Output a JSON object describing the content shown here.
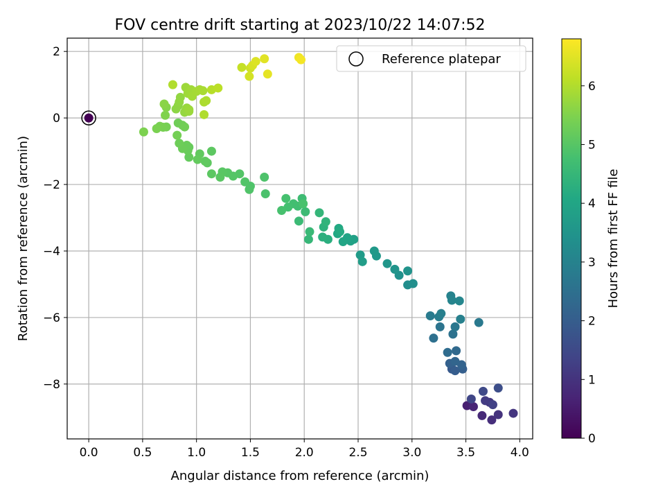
{
  "chart_data": {
    "type": "scatter",
    "title": "FOV centre drift starting at 2023/10/22 14:07:52",
    "xlabel": "Angular distance from reference (arcmin)",
    "ylabel": "Rotation from reference (arcmin)",
    "xlim": [
      -0.2,
      4.12
    ],
    "ylim": [
      -9.65,
      2.4
    ],
    "xticks": [
      0.0,
      0.5,
      1.0,
      1.5,
      2.0,
      2.5,
      3.0,
      3.5,
      4.0
    ],
    "xtick_labels": [
      "0.0",
      "0.5",
      "1.0",
      "1.5",
      "2.0",
      "2.5",
      "3.0",
      "3.5",
      "4.0"
    ],
    "yticks": [
      2,
      0,
      -2,
      -4,
      -6,
      -8
    ],
    "ytick_labels": [
      "2",
      "0",
      "−2",
      "−4",
      "−6",
      "−8"
    ],
    "grid": true,
    "legend": {
      "placement": "top-right",
      "entries": [
        "Reference platepar"
      ]
    },
    "colorbar": {
      "label": "Hours from first FF file",
      "colormap": "viridis",
      "range": [
        0,
        6.8
      ],
      "ticks": [
        0,
        1,
        2,
        3,
        4,
        5,
        6
      ],
      "tick_labels": [
        "0",
        "1",
        "2",
        "3",
        "4",
        "5",
        "6"
      ]
    },
    "reference_point": {
      "x": 0.0,
      "y": 0.0,
      "c": 0.0
    },
    "series": [
      {
        "points": [
          [
            3.51,
            -8.65,
            0.6
          ],
          [
            3.57,
            -8.68,
            0.7
          ],
          [
            3.65,
            -8.95,
            0.8
          ],
          [
            3.74,
            -9.08,
            0.9
          ],
          [
            3.8,
            -8.92,
            1.0
          ],
          [
            3.94,
            -8.88,
            1.05
          ],
          [
            3.72,
            -8.55,
            1.1
          ],
          [
            3.68,
            -8.5,
            1.2
          ],
          [
            3.75,
            -8.62,
            1.3
          ],
          [
            3.55,
            -8.45,
            1.4
          ],
          [
            3.66,
            -8.22,
            1.5
          ],
          [
            3.8,
            -8.12,
            1.6
          ],
          [
            3.37,
            -7.55,
            1.9
          ],
          [
            3.4,
            -7.6,
            2.0
          ],
          [
            3.47,
            -7.55,
            2.05
          ],
          [
            3.35,
            -7.38,
            2.1
          ],
          [
            3.46,
            -7.42,
            2.15
          ],
          [
            3.4,
            -7.32,
            2.2
          ],
          [
            3.41,
            -7.0,
            2.3
          ],
          [
            3.33,
            -7.05,
            2.4
          ],
          [
            3.2,
            -6.62,
            2.5
          ],
          [
            3.38,
            -6.5,
            2.55
          ],
          [
            3.26,
            -6.28,
            2.6
          ],
          [
            3.4,
            -6.28,
            2.7
          ],
          [
            3.62,
            -6.15,
            2.75
          ],
          [
            3.17,
            -5.95,
            2.8
          ],
          [
            3.25,
            -5.98,
            2.85
          ],
          [
            3.27,
            -5.88,
            2.9
          ],
          [
            3.45,
            -6.05,
            2.95
          ],
          [
            3.36,
            -5.35,
            3.0
          ],
          [
            3.37,
            -5.48,
            3.05
          ],
          [
            3.44,
            -5.5,
            3.1
          ],
          [
            2.96,
            -5.02,
            3.3
          ],
          [
            3.01,
            -4.98,
            3.35
          ],
          [
            2.88,
            -4.73,
            3.4
          ],
          [
            2.96,
            -4.6,
            3.45
          ],
          [
            2.84,
            -4.55,
            3.5
          ],
          [
            2.77,
            -4.38,
            3.55
          ],
          [
            2.67,
            -4.15,
            3.6
          ],
          [
            2.65,
            -4.0,
            3.65
          ],
          [
            2.52,
            -4.12,
            3.7
          ],
          [
            2.54,
            -4.32,
            3.75
          ],
          [
            2.46,
            -3.65,
            3.85
          ],
          [
            2.43,
            -3.7,
            3.9
          ],
          [
            2.4,
            -3.6,
            3.95
          ],
          [
            2.36,
            -3.72,
            4.0
          ],
          [
            2.31,
            -3.48,
            4.05
          ],
          [
            2.32,
            -3.32,
            4.1
          ],
          [
            2.33,
            -3.42,
            4.15
          ],
          [
            2.22,
            -3.65,
            4.25
          ],
          [
            2.17,
            -3.58,
            4.3
          ],
          [
            2.18,
            -3.28,
            4.35
          ],
          [
            2.2,
            -3.12,
            4.4
          ],
          [
            2.14,
            -2.85,
            4.45
          ],
          [
            2.04,
            -3.65,
            4.5
          ],
          [
            2.05,
            -3.42,
            4.55
          ],
          [
            1.95,
            -3.1,
            4.6
          ],
          [
            2.01,
            -2.82,
            4.62
          ],
          [
            1.98,
            -2.42,
            4.65
          ],
          [
            1.94,
            -2.65,
            4.7
          ],
          [
            1.9,
            -2.58,
            4.72
          ],
          [
            1.85,
            -2.68,
            4.75
          ],
          [
            1.83,
            -2.42,
            4.78
          ],
          [
            1.79,
            -2.78,
            4.8
          ],
          [
            1.99,
            -2.58,
            4.82
          ],
          [
            1.64,
            -2.28,
            4.85
          ],
          [
            1.63,
            -1.78,
            4.88
          ],
          [
            1.5,
            -2.05,
            4.9
          ],
          [
            1.49,
            -2.15,
            4.92
          ],
          [
            1.45,
            -1.92,
            4.94
          ],
          [
            1.4,
            -1.68,
            4.96
          ],
          [
            1.34,
            -1.75,
            4.98
          ],
          [
            1.29,
            -1.65,
            5.0
          ],
          [
            1.24,
            -1.62,
            5.02
          ],
          [
            1.22,
            -1.78,
            5.04
          ],
          [
            1.14,
            -1.68,
            5.06
          ],
          [
            1.14,
            -1.0,
            5.08
          ],
          [
            1.1,
            -1.35,
            5.1
          ],
          [
            1.08,
            -1.3,
            5.12
          ],
          [
            1.03,
            -1.08,
            5.14
          ],
          [
            1.01,
            -1.25,
            5.16
          ],
          [
            0.93,
            -1.18,
            5.18
          ],
          [
            0.93,
            -0.88,
            5.2
          ],
          [
            0.92,
            -0.98,
            5.22
          ],
          [
            0.91,
            -0.82,
            5.24
          ],
          [
            0.87,
            -0.92,
            5.26
          ],
          [
            0.84,
            -0.76,
            5.28
          ],
          [
            0.83,
            -0.15,
            5.3
          ],
          [
            0.87,
            -0.22,
            5.32
          ],
          [
            0.89,
            -0.27,
            5.34
          ],
          [
            0.82,
            -0.52,
            5.36
          ],
          [
            0.72,
            -0.27,
            5.38
          ],
          [
            0.69,
            -0.28,
            5.4
          ],
          [
            0.66,
            -0.25,
            5.42
          ],
          [
            0.63,
            -0.32,
            5.44
          ],
          [
            0.51,
            -0.42,
            5.46
          ],
          [
            0.71,
            0.08,
            5.5
          ],
          [
            0.72,
            0.32,
            5.55
          ],
          [
            0.7,
            0.42,
            5.6
          ],
          [
            0.81,
            0.27,
            5.62
          ],
          [
            0.83,
            0.37,
            5.64
          ],
          [
            0.84,
            0.48,
            5.66
          ],
          [
            0.85,
            0.62,
            5.68
          ],
          [
            0.89,
            0.17,
            5.7
          ],
          [
            0.9,
            0.22,
            5.72
          ],
          [
            0.91,
            0.3,
            5.74
          ],
          [
            0.93,
            0.2,
            5.76
          ],
          [
            0.93,
            0.25,
            5.78
          ],
          [
            0.9,
            0.92,
            5.8
          ],
          [
            0.92,
            0.74,
            5.82
          ],
          [
            0.95,
            0.85,
            5.84
          ],
          [
            0.96,
            0.65,
            5.86
          ],
          [
            1.0,
            0.8,
            5.88
          ],
          [
            1.03,
            0.85,
            5.9
          ],
          [
            1.06,
            0.82,
            5.92
          ],
          [
            1.07,
            0.48,
            5.94
          ],
          [
            1.09,
            0.52,
            5.96
          ],
          [
            1.07,
            0.1,
            5.98
          ],
          [
            0.78,
            1.0,
            6.0
          ],
          [
            1.14,
            0.85,
            6.05
          ],
          [
            1.2,
            0.9,
            6.1
          ],
          [
            1.42,
            1.52,
            6.2
          ],
          [
            1.5,
            1.5,
            6.3
          ],
          [
            1.49,
            1.25,
            6.35
          ],
          [
            1.52,
            1.58,
            6.4
          ],
          [
            1.55,
            1.7,
            6.45
          ],
          [
            1.63,
            1.78,
            6.5
          ],
          [
            1.66,
            1.32,
            6.55
          ],
          [
            1.95,
            1.82,
            6.65
          ],
          [
            1.97,
            1.75,
            6.7
          ]
        ]
      }
    ]
  }
}
